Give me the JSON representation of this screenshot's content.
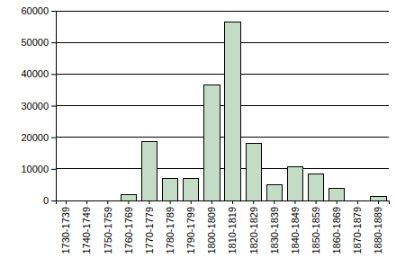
{
  "chart_data": {
    "type": "bar",
    "categories": [
      "1730-1739",
      "1740-1749",
      "1750-1759",
      "1760-1769",
      "1770-1779",
      "1780-1789",
      "1790-1799",
      "1800-1809",
      "1810-1819",
      "1820-1829",
      "1830-1839",
      "1840-1849",
      "1850-1859",
      "1860-1869",
      "1870-1879",
      "1880-1889"
    ],
    "values": [
      0,
      0,
      0,
      1800,
      18500,
      7000,
      7000,
      36500,
      56500,
      18000,
      5000,
      10800,
      8500,
      3700,
      0,
      1200
    ],
    "color": "#c4dcc6",
    "ylim": [
      0,
      60000
    ],
    "yticks": [
      0,
      10000,
      20000,
      30000,
      40000,
      50000,
      60000
    ],
    "grid": true
  }
}
